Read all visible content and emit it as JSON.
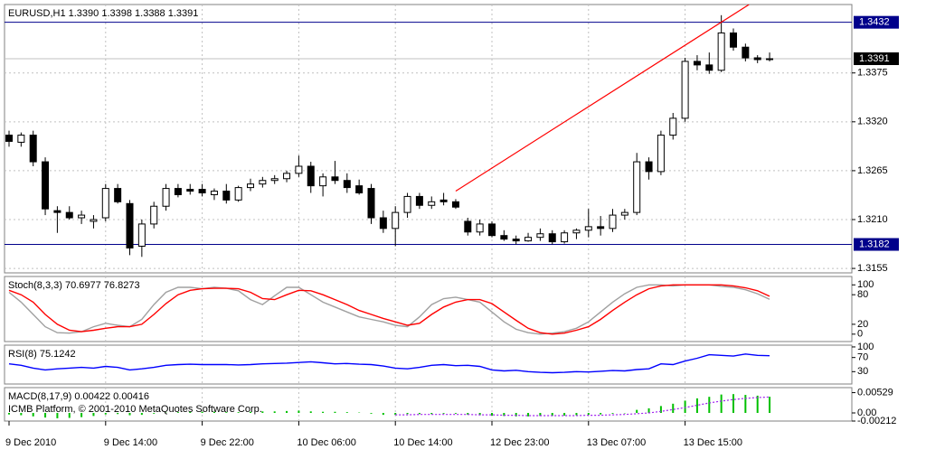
{
  "chart_data": [
    {
      "type": "candlestick",
      "title": "EURUSD,H1  1.3390 1.3398 1.3388 1.3391",
      "categories": [
        "9 Dec 2010",
        null,
        null,
        null,
        null,
        null,
        null,
        null,
        "9 Dec 14:00",
        null,
        null,
        null,
        null,
        null,
        null,
        null,
        "9 Dec 22:00",
        null,
        null,
        null,
        null,
        null,
        null,
        null,
        "10 Dec 06:00",
        null,
        null,
        null,
        null,
        null,
        null,
        null,
        "10 Dec 14:00",
        null,
        null,
        null,
        null,
        null,
        null,
        null,
        "12 Dec 23:00",
        null,
        null,
        null,
        null,
        null,
        null,
        null,
        "13 Dec 07:00",
        null,
        null,
        null,
        null,
        null,
        null,
        null,
        "13 Dec 15:00",
        null,
        null,
        null,
        null,
        null,
        null,
        null
      ],
      "open": [
        1.3305,
        1.3297,
        1.3305,
        1.3275,
        1.322,
        1.3218,
        1.3212,
        1.3208,
        1.3212,
        1.3245,
        1.3228,
        1.318,
        1.3205,
        1.3225,
        1.3245,
        1.3244,
        1.3244,
        1.3238,
        1.3242,
        1.3232,
        1.3246,
        1.325,
        1.3254,
        1.3256,
        1.3262,
        1.327,
        1.3248,
        1.3258,
        1.3254,
        1.3248,
        1.3245,
        1.3212,
        1.32,
        1.3218,
        1.3236,
        1.3226,
        1.3232,
        1.323,
        1.3208,
        1.3196,
        1.3205,
        1.3192,
        1.3188,
        1.3186,
        1.319,
        1.3194,
        1.3185,
        1.3195,
        1.3198,
        1.3202,
        1.32,
        1.3215,
        1.3218,
        1.3275,
        1.3264,
        1.3305,
        1.3324,
        1.3388,
        1.3384,
        1.3378,
        1.342,
        1.3404,
        1.3392,
        1.339
      ],
      "high": [
        1.331,
        1.3308,
        1.331,
        1.328,
        1.3225,
        1.3225,
        1.322,
        1.3215,
        1.325,
        1.325,
        1.3232,
        1.321,
        1.323,
        1.325,
        1.325,
        1.325,
        1.325,
        1.3245,
        1.325,
        1.3248,
        1.3256,
        1.3258,
        1.326,
        1.3265,
        1.3282,
        1.3275,
        1.3262,
        1.3276,
        1.3262,
        1.3255,
        1.325,
        1.322,
        1.3225,
        1.324,
        1.324,
        1.3236,
        1.324,
        1.3233,
        1.3212,
        1.321,
        1.3208,
        1.3198,
        1.3192,
        1.3195,
        1.32,
        1.3198,
        1.3198,
        1.32,
        1.3222,
        1.3214,
        1.3222,
        1.3222,
        1.3285,
        1.328,
        1.331,
        1.333,
        1.3392,
        1.3395,
        1.3398,
        1.344,
        1.3425,
        1.3408,
        1.3395,
        1.3398
      ],
      "low": [
        1.3292,
        1.3292,
        1.327,
        1.3215,
        1.3195,
        1.321,
        1.3205,
        1.32,
        1.3208,
        1.3228,
        1.317,
        1.3168,
        1.32,
        1.322,
        1.3235,
        1.3238,
        1.3236,
        1.3232,
        1.3228,
        1.323,
        1.3242,
        1.3246,
        1.325,
        1.3252,
        1.3258,
        1.324,
        1.3236,
        1.325,
        1.324,
        1.3238,
        1.3205,
        1.3195,
        1.318,
        1.3212,
        1.3222,
        1.3222,
        1.3226,
        1.3222,
        1.3192,
        1.3192,
        1.319,
        1.3186,
        1.3182,
        1.3185,
        1.3186,
        1.3182,
        1.3183,
        1.3188,
        1.319,
        1.3192,
        1.3196,
        1.321,
        1.3215,
        1.3255,
        1.326,
        1.33,
        1.332,
        1.3378,
        1.3374,
        1.3376,
        1.34,
        1.3388,
        1.3386,
        1.3388
      ],
      "close": [
        1.3298,
        1.3305,
        1.3275,
        1.3222,
        1.3218,
        1.3212,
        1.3215,
        1.321,
        1.3245,
        1.323,
        1.3178,
        1.3205,
        1.3225,
        1.3245,
        1.3238,
        1.3242,
        1.324,
        1.3242,
        1.3232,
        1.3246,
        1.325,
        1.3254,
        1.3256,
        1.3262,
        1.327,
        1.3248,
        1.3258,
        1.3254,
        1.3246,
        1.324,
        1.3212,
        1.32,
        1.3218,
        1.3236,
        1.3226,
        1.323,
        1.323,
        1.3224,
        1.3196,
        1.3205,
        1.3192,
        1.3188,
        1.3186,
        1.319,
        1.3194,
        1.3185,
        1.3195,
        1.3198,
        1.3202,
        1.32,
        1.3215,
        1.3218,
        1.3275,
        1.3264,
        1.3305,
        1.3324,
        1.3388,
        1.3384,
        1.3378,
        1.342,
        1.3404,
        1.3392,
        1.339,
        1.3391
      ],
      "bull_color": "#ffffff",
      "bear_color": "#000000",
      "ylim": [
        1.315,
        1.3452
      ],
      "yticks": [
        1.3375,
        {
          "value": 1.332,
          "label": "1.3320"
        },
        1.3265,
        {
          "value": 1.321,
          "label": "1.3210"
        },
        1.3155
      ],
      "grid": true,
      "price_lines": [
        {
          "value": 1.3432,
          "color": "#00008b"
        },
        {
          "value": 1.3182,
          "color": "#00008b"
        }
      ],
      "current_price": {
        "value": 1.3391,
        "color": "#c0c0c0"
      },
      "trend_line": {
        "x": [
          37,
          61.3
        ],
        "y": [
          1.3242,
          1.3452
        ],
        "color": "#ff0000"
      }
    },
    {
      "type": "line",
      "title": "Stoch(8,3,3) 70.6977 76.8273",
      "series": [
        {
          "color": "#a0a0a0",
          "values": [
            85,
            65,
            40,
            15,
            3,
            2,
            5,
            15,
            22,
            18,
            15,
            30,
            60,
            85,
            95,
            95,
            92,
            95,
            93,
            88,
            70,
            60,
            78,
            95,
            95,
            80,
            65,
            55,
            45,
            35,
            30,
            25,
            18,
            15,
            35,
            60,
            72,
            75,
            70,
            65,
            45,
            25,
            10,
            3,
            0,
            2,
            5,
            12,
            25,
            45,
            65,
            82,
            95,
            100,
            100,
            98,
            100,
            100,
            100,
            97,
            95,
            90,
            82,
            70.6977
          ]
        },
        {
          "color": "#ff0000",
          "values": [
            89,
            80,
            65,
            40,
            20,
            8,
            5,
            8,
            12,
            15,
            15,
            20,
            40,
            62,
            80,
            89,
            92,
            93,
            93,
            92,
            85,
            72,
            70,
            80,
            89,
            88,
            80,
            70,
            60,
            48,
            40,
            32,
            25,
            18,
            22,
            40,
            55,
            65,
            70,
            70,
            62,
            45,
            28,
            12,
            3,
            0,
            2,
            8,
            15,
            30,
            48,
            65,
            80,
            92,
            98,
            100,
            100,
            100,
            100,
            100,
            98,
            94,
            88,
            76.8273
          ]
        }
      ],
      "ylim": [
        -15,
        117
      ],
      "yticks": [
        100,
        80,
        20,
        0
      ],
      "grid": true
    },
    {
      "type": "line",
      "title": "RSI(8) 75.1242",
      "series": [
        {
          "color": "#0000ff",
          "values": [
            52,
            48,
            40,
            35,
            38,
            40,
            42,
            40,
            45,
            42,
            35,
            38,
            42,
            48,
            50,
            51,
            50,
            50,
            50,
            49,
            50,
            52,
            53,
            54,
            56,
            58,
            55,
            52,
            53,
            51,
            50,
            46,
            40,
            38,
            42,
            48,
            50,
            47,
            48,
            45,
            35,
            32,
            34,
            30,
            28,
            27,
            28,
            30,
            29,
            31,
            33,
            32,
            36,
            38,
            52,
            50,
            60,
            68,
            78,
            76,
            74,
            80,
            76,
            75.1242
          ]
        }
      ],
      "ylim": [
        -5,
        105
      ],
      "yticks": [
        100,
        70,
        30
      ],
      "grid": true
    },
    {
      "type": "macd",
      "title": "MACD(8,17,9) 0.00422 0.00416",
      "subtitle": "ICMB Platform, © 2001-2010 MetaQuotes Software Corp.",
      "series": [
        {
          "style": "histogram",
          "color": "#00c000",
          "values": [
            -0.0004,
            -0.0006,
            -0.0009,
            -0.0012,
            -0.0014,
            -0.0013,
            -0.0011,
            -0.0008,
            -0.0004,
            -0.0003,
            -0.0006,
            -0.0005,
            -0.0002,
            0.0001,
            0.0002,
            0.0003,
            0.0003,
            0.0003,
            0.0002,
            0.0002,
            0.0003,
            0.0004,
            0.0004,
            0.0005,
            0.0006,
            0.0004,
            0.0003,
            0.0003,
            0.0002,
            0.0001,
            -0.0002,
            -0.0005,
            -0.0005,
            -0.0003,
            -0.0003,
            -0.0003,
            -0.0002,
            -0.0002,
            -0.0005,
            -0.0006,
            -0.0007,
            -0.0008,
            -0.0009,
            -0.0009,
            -0.0008,
            -0.0008,
            -0.0007,
            -0.0006,
            -0.0005,
            -0.0004,
            -0.0002,
            -0.0001,
            0.0008,
            0.0012,
            0.0018,
            0.0024,
            0.0032,
            0.0038,
            0.0042,
            0.0048,
            0.0049,
            0.0047,
            0.0045,
            0.00422
          ]
        },
        {
          "style": "dotted",
          "color": "#a020f0",
          "values": [
            null,
            null,
            null,
            null,
            null,
            null,
            null,
            null,
            null,
            null,
            null,
            null,
            null,
            null,
            null,
            null,
            null,
            null,
            null,
            null,
            null,
            null,
            null,
            null,
            null,
            null,
            null,
            null,
            null,
            null,
            null,
            null,
            -0.0005,
            -0.0005,
            -0.0004,
            -0.0004,
            -0.0004,
            -0.0004,
            -0.0004,
            -0.0005,
            -0.0005,
            -0.0006,
            -0.0006,
            -0.0007,
            -0.0007,
            -0.0007,
            -0.0007,
            -0.0007,
            -0.0006,
            -0.0006,
            -0.0005,
            -0.0004,
            -0.0002,
            0.0,
            0.0004,
            0.0009,
            0.0014,
            0.002,
            0.0026,
            0.0031,
            0.0035,
            0.0038,
            0.004,
            0.00416
          ]
        }
      ],
      "ylim": [
        -0.00212,
        0.0066
      ],
      "yticks": [
        0.00529,
        {
          "value": 0,
          "label": "0.00"
        },
        -0.00212
      ],
      "grid": true
    }
  ]
}
